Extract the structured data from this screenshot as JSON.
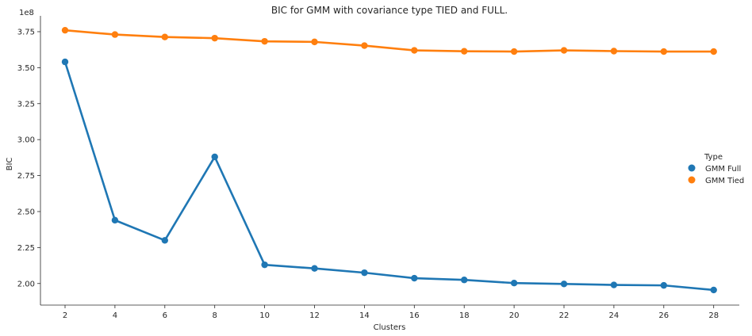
{
  "chart_data": {
    "type": "line",
    "title": "BIC for GMM with covariance type TIED and FULL.",
    "xlabel": "Clusters",
    "ylabel": "BIC",
    "y_multiplier_label": "1e8",
    "categories": [
      "2",
      "4",
      "6",
      "8",
      "10",
      "12",
      "14",
      "16",
      "18",
      "20",
      "22",
      "24",
      "26",
      "28"
    ],
    "yticks": [
      "2.00",
      "2.25",
      "2.50",
      "2.75",
      "3.00",
      "3.25",
      "3.50",
      "3.75"
    ],
    "ylim": [
      1.85,
      3.86
    ],
    "legend": {
      "title": "Type",
      "placement": "center-right"
    },
    "grid": false,
    "series": [
      {
        "name": "GMM Full",
        "color": "#1f77b4",
        "values": [
          3.54,
          2.44,
          2.3,
          2.88,
          2.13,
          2.105,
          2.075,
          2.037,
          2.025,
          2.003,
          1.997,
          1.99,
          1.987,
          1.955
        ]
      },
      {
        "name": "GMM Tied",
        "color": "#ff7f0e",
        "values": [
          3.76,
          3.73,
          3.713,
          3.705,
          3.683,
          3.679,
          3.653,
          3.62,
          3.614,
          3.612,
          3.62,
          3.615,
          3.612,
          3.612
        ]
      }
    ]
  }
}
